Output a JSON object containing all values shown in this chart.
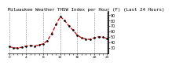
{
  "title": "Milwaukee Weather THSW Index per Hour (F) (Last 24 Hours)",
  "x_values": [
    0,
    1,
    2,
    3,
    4,
    5,
    6,
    7,
    8,
    9,
    10,
    11,
    12,
    13,
    14,
    15,
    16,
    17,
    18,
    19,
    20,
    21,
    22,
    23
  ],
  "y_values": [
    32,
    30,
    29,
    31,
    33,
    34,
    33,
    35,
    37,
    43,
    56,
    72,
    87,
    80,
    70,
    62,
    53,
    48,
    46,
    45,
    48,
    50,
    49,
    47
  ],
  "y_min": 20,
  "y_max": 95,
  "y_ticks": [
    30,
    40,
    50,
    60,
    70,
    80,
    90
  ],
  "line_color": "#cc0000",
  "marker_color": "#000000",
  "bg_color": "#ffffff",
  "plot_bg_color": "#ffffff",
  "grid_color": "#888888",
  "title_fontsize": 4.2,
  "tick_fontsize": 3.5,
  "line_width": 0.9,
  "marker_size": 1.8,
  "x_tick_labels": [
    "0",
    "",
    "",
    "",
    "4",
    "",
    "",
    "",
    "8",
    "",
    "",
    "",
    "12",
    "",
    "",
    "",
    "16",
    "",
    "",
    "",
    "20",
    "",
    "",
    "23"
  ],
  "vgrid_positions": [
    0,
    4,
    8,
    12,
    16,
    20,
    23
  ]
}
